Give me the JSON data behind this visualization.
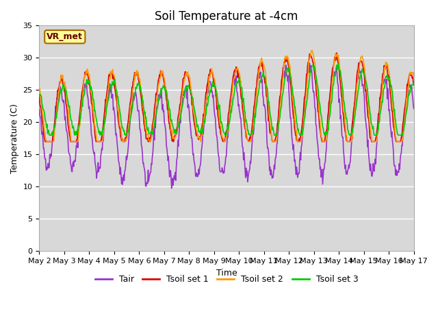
{
  "title": "Soil Temperature at -4cm",
  "xlabel": "Time",
  "ylabel": "Temperature (C)",
  "ylim": [
    0,
    35
  ],
  "background_color": "#ffffff",
  "plot_bg_color": "#d8d8d8",
  "grid_color": "#ffffff",
  "label_box": "VR_met",
  "x_tick_labels": [
    "May 2",
    "May 3",
    "May 4",
    "May 5",
    "May 6",
    "May 7",
    "May 8",
    "May 9",
    "May 10",
    "May 11",
    "May 12",
    "May 13",
    "May 14",
    "May 15",
    "May 16",
    "May 17"
  ],
  "series": [
    {
      "label": "Tair",
      "color": "#9933cc",
      "lw": 1.2
    },
    {
      "label": "Tsoil set 1",
      "color": "#dd0000",
      "lw": 1.2
    },
    {
      "label": "Tsoil set 2",
      "color": "#ff9900",
      "lw": 1.2
    },
    {
      "label": "Tsoil set 3",
      "color": "#00cc00",
      "lw": 1.2
    }
  ],
  "title_fontsize": 12,
  "axis_label_fontsize": 9,
  "tick_fontsize": 8,
  "legend_fontsize": 9
}
